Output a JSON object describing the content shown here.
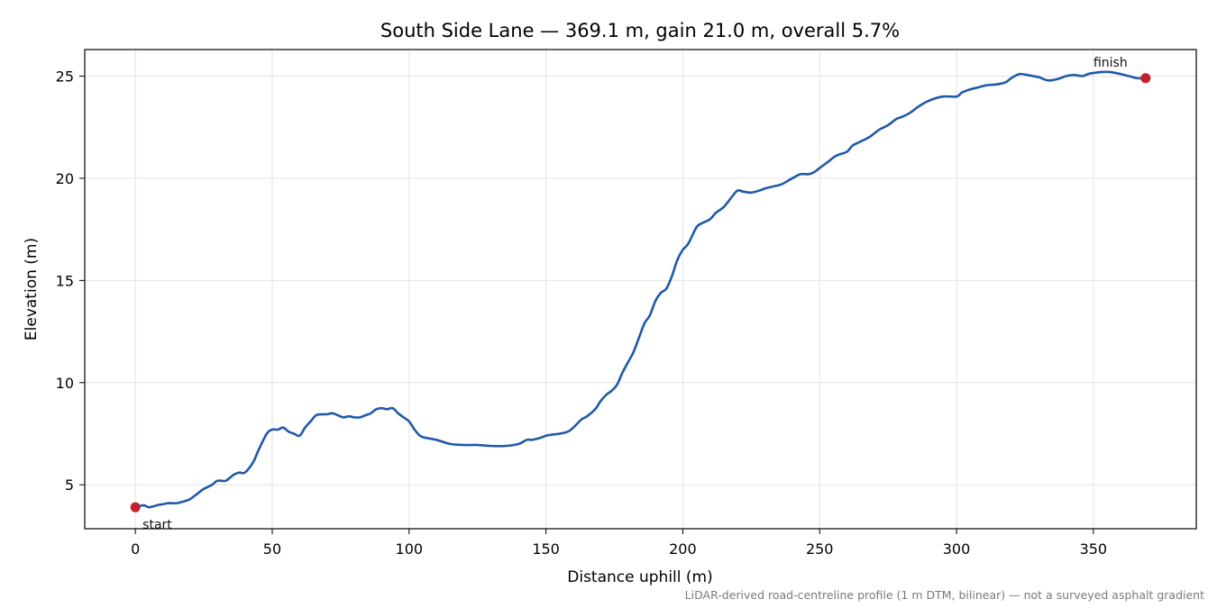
{
  "chart_data": {
    "type": "line",
    "title": "South Side Lane — 369.1 m, gain 21.0 m, overall 5.7%",
    "xlabel": "Distance uphill (m)",
    "ylabel": "Elevation (m)",
    "xlim": [
      -18.5,
      387.6
    ],
    "ylim": [
      2.85,
      26.3
    ],
    "xticks": [
      0,
      50,
      100,
      150,
      200,
      250,
      300,
      350
    ],
    "yticks": [
      5,
      10,
      15,
      20,
      25
    ],
    "grid": true,
    "footnote": "LiDAR-derived road-centreline profile (1 m DTM, bilinear) — not a surveyed asphalt gradient",
    "series": [
      {
        "color": "#1f5aa8",
        "x": [
          0,
          3,
          5,
          8,
          10,
          12,
          15,
          18,
          20,
          23,
          25,
          28,
          30,
          33,
          36,
          38,
          40,
          43,
          45,
          48,
          50,
          52,
          54,
          56,
          58,
          60,
          62,
          64,
          66,
          68,
          70,
          72,
          74,
          76,
          78,
          80,
          82,
          84,
          86,
          88,
          90,
          92,
          94,
          96,
          98,
          100,
          102,
          104,
          106,
          110,
          115,
          120,
          125,
          130,
          135,
          140,
          143,
          145,
          148,
          150,
          152,
          155,
          158,
          160,
          163,
          165,
          168,
          170,
          172,
          174,
          176,
          178,
          180,
          182,
          184,
          186,
          188,
          190,
          192,
          194,
          196,
          198,
          200,
          202,
          205,
          207,
          210,
          212,
          215,
          218,
          220,
          222,
          225,
          228,
          230,
          233,
          236,
          240,
          243,
          246,
          248,
          250,
          253,
          256,
          260,
          262,
          265,
          268,
          270,
          272,
          275,
          278,
          280,
          283,
          286,
          290,
          295,
          300,
          302,
          305,
          308,
          311,
          315,
          318,
          320,
          323,
          326,
          328,
          330,
          333,
          335,
          338,
          340,
          343,
          346,
          348,
          350,
          353,
          356,
          360,
          363,
          366,
          369.1
        ],
        "y": [
          3.9,
          4.0,
          3.9,
          4.0,
          4.05,
          4.1,
          4.1,
          4.2,
          4.3,
          4.6,
          4.8,
          5.0,
          5.2,
          5.2,
          5.5,
          5.6,
          5.6,
          6.1,
          6.7,
          7.5,
          7.7,
          7.7,
          7.8,
          7.6,
          7.5,
          7.4,
          7.8,
          8.1,
          8.4,
          8.45,
          8.45,
          8.5,
          8.4,
          8.3,
          8.35,
          8.3,
          8.3,
          8.4,
          8.5,
          8.7,
          8.75,
          8.7,
          8.75,
          8.5,
          8.3,
          8.1,
          7.7,
          7.4,
          7.3,
          7.2,
          7.0,
          6.95,
          6.95,
          6.9,
          6.9,
          7.0,
          7.2,
          7.2,
          7.3,
          7.4,
          7.45,
          7.5,
          7.6,
          7.8,
          8.2,
          8.35,
          8.7,
          9.1,
          9.4,
          9.6,
          9.9,
          10.5,
          11.0,
          11.5,
          12.2,
          12.9,
          13.3,
          14.0,
          14.4,
          14.6,
          15.2,
          16.0,
          16.5,
          16.8,
          17.6,
          17.8,
          18.0,
          18.3,
          18.6,
          19.1,
          19.4,
          19.35,
          19.3,
          19.4,
          19.5,
          19.6,
          19.7,
          20.0,
          20.2,
          20.2,
          20.3,
          20.5,
          20.8,
          21.1,
          21.3,
          21.6,
          21.8,
          22.0,
          22.2,
          22.4,
          22.6,
          22.9,
          23.0,
          23.2,
          23.5,
          23.8,
          24.0,
          24.0,
          24.2,
          24.35,
          24.45,
          24.55,
          24.6,
          24.7,
          24.9,
          25.1,
          25.05,
          25.0,
          24.95,
          24.8,
          24.8,
          24.9,
          25.0,
          25.05,
          25.0,
          25.1,
          25.15,
          25.2,
          25.2,
          25.1,
          25.0,
          24.9,
          24.9
        ]
      }
    ],
    "points": [
      {
        "label": "start",
        "x": 0,
        "y": 3.9,
        "color": "#c4202b"
      },
      {
        "label": "finish",
        "x": 369.1,
        "y": 24.9,
        "color": "#c4202b"
      }
    ]
  }
}
